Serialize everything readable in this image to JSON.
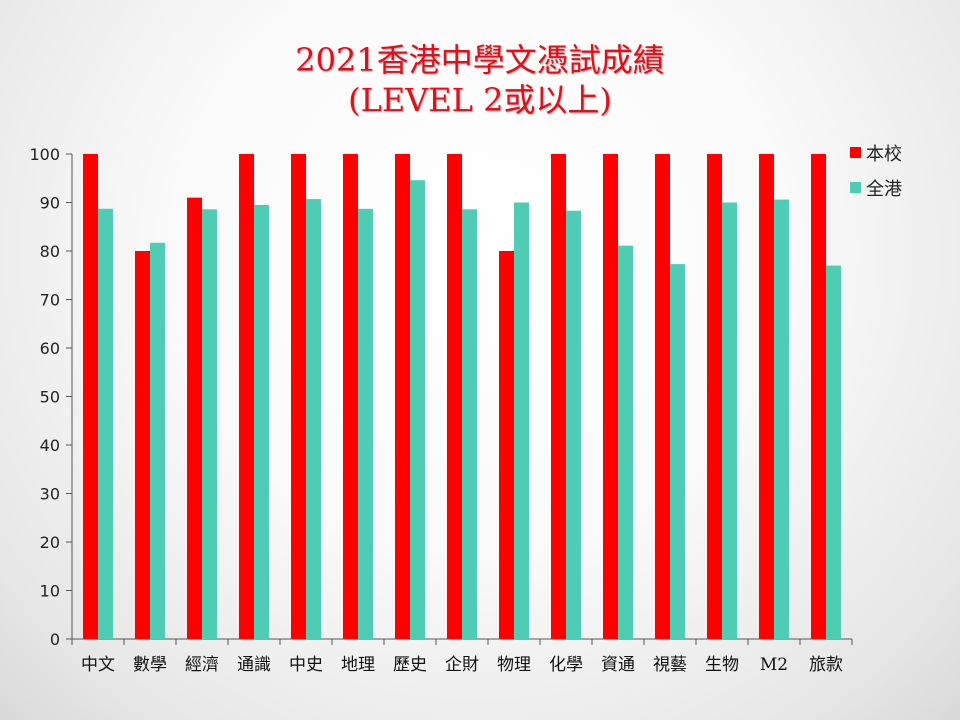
{
  "chart_data": {
    "type": "bar",
    "title": "2021香港中學文憑試成績",
    "subtitle": "(LEVEL 2或以上)",
    "categories": [
      "中文",
      "數學",
      "經濟",
      "通識",
      "中史",
      "地理",
      "歷史",
      "企財",
      "物理",
      "化學",
      "資通",
      "視藝",
      "生物",
      "M2",
      "旅款"
    ],
    "series": [
      {
        "name": "本校",
        "color": "#ff0000",
        "values": [
          100,
          80,
          91,
          100,
          100,
          100,
          100,
          100,
          80,
          100,
          100,
          100,
          100,
          100,
          100
        ]
      },
      {
        "name": "全港",
        "color": "#4ecdb4",
        "values": [
          88.7,
          81.7,
          88.6,
          89.5,
          90.7,
          88.7,
          94.6,
          88.6,
          90.0,
          88.3,
          81.1,
          77.3,
          90.0,
          90.6,
          77.0
        ]
      }
    ],
    "ylim": [
      0,
      100
    ],
    "yticks": [
      0,
      10,
      20,
      30,
      40,
      50,
      60,
      70,
      80,
      90,
      100
    ],
    "grid": false,
    "legend": "right"
  }
}
